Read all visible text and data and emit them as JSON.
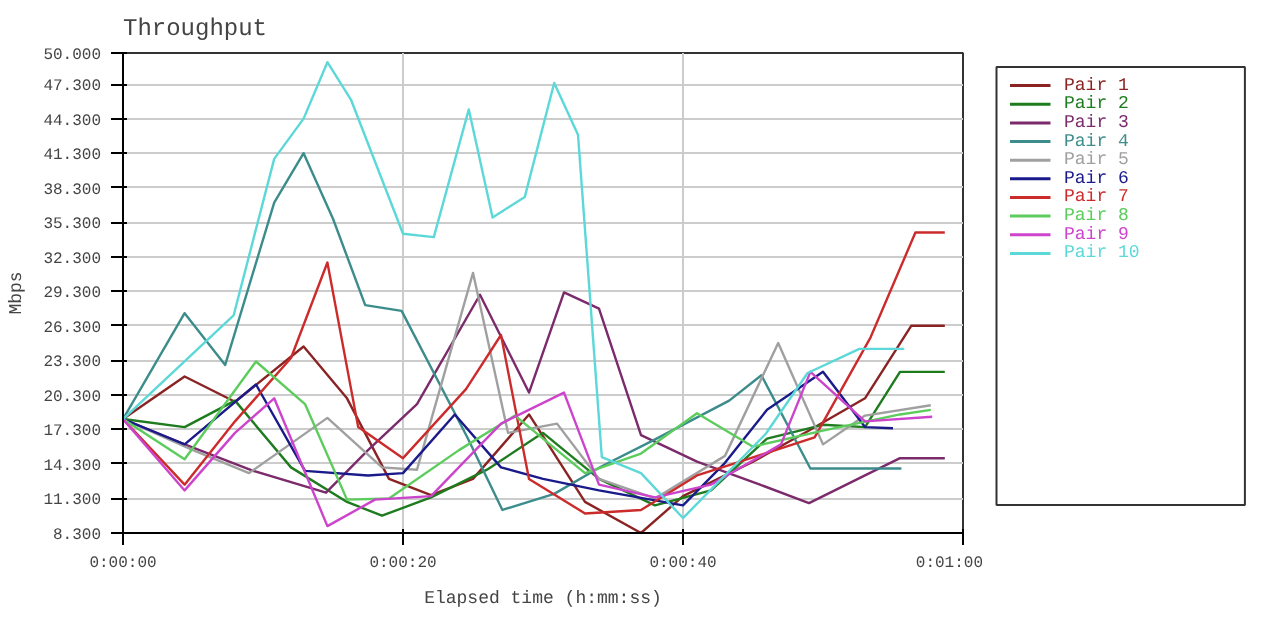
{
  "chart_data": {
    "type": "line",
    "title": "Throughput",
    "xlabel": "Elapsed time (h:mm:ss)",
    "ylabel": "Mbps",
    "xlim": [
      0,
      60
    ],
    "xticks": [
      {
        "value": 0,
        "label": "0:00:00"
      },
      {
        "value": 20,
        "label": "0:00:20"
      },
      {
        "value": 40,
        "label": "0:00:40"
      },
      {
        "value": 60,
        "label": "0:01:00"
      }
    ],
    "ylim": [
      8.3,
      50
    ],
    "yticks": [
      {
        "value": 8.3,
        "label": "8.300"
      },
      {
        "value": 11.3,
        "label": "11.300"
      },
      {
        "value": 14.3,
        "label": "14.300"
      },
      {
        "value": 17.3,
        "label": "17.300"
      },
      {
        "value": 20.3,
        "label": "20.300"
      },
      {
        "value": 23.3,
        "label": "23.300"
      },
      {
        "value": 26.3,
        "label": "26.300"
      },
      {
        "value": 29.3,
        "label": "29.300"
      },
      {
        "value": 32.3,
        "label": "32.300"
      },
      {
        "value": 35.3,
        "label": "35.300"
      },
      {
        "value": 38.3,
        "label": "38.300"
      },
      {
        "value": 41.3,
        "label": "41.300"
      },
      {
        "value": 44.3,
        "label": "44.300"
      },
      {
        "value": 47.3,
        "label": "47.300"
      },
      {
        "value": 50,
        "label": "50.000"
      }
    ],
    "grid": true,
    "legend": "right",
    "marker": "none",
    "line_style": "solid",
    "series": [
      {
        "name": "Pair 1",
        "color": "#8b2323",
        "x": [
          0,
          4.4,
          8,
          12.9,
          16,
          19,
          22,
          25,
          29,
          33,
          37,
          40,
          45,
          49,
          53,
          56.3,
          58.7
        ],
        "values": [
          18.2,
          21.9,
          19.7,
          24.5,
          20,
          13,
          11.6,
          13,
          18.6,
          11,
          8.3,
          11.5,
          14.5,
          17.2,
          20,
          26.3,
          26.3
        ]
      },
      {
        "name": "Pair 2",
        "color": "#1e7b1e",
        "x": [
          0,
          4.4,
          8,
          12,
          16,
          18.5,
          22,
          26,
          30,
          34,
          38,
          42,
          46,
          50,
          53,
          55.5,
          58.7
        ],
        "values": [
          18.2,
          17.5,
          19.8,
          14,
          11,
          9.8,
          11.4,
          13.8,
          17,
          13,
          10.7,
          12,
          16.5,
          17.7,
          17.5,
          22.3,
          22.3
        ]
      },
      {
        "name": "Pair 3",
        "color": "#7b2a6b",
        "x": [
          0,
          4.4,
          9.3,
          14.5,
          17.5,
          21,
          25.5,
          29,
          31.5,
          34,
          37,
          41,
          45.5,
          49,
          53,
          55.5,
          58.7
        ],
        "values": [
          18.2,
          16,
          13.7,
          11.8,
          15.5,
          19.5,
          29,
          20.5,
          29.2,
          27.8,
          16.8,
          14.5,
          12.5,
          10.9,
          13.3,
          14.8,
          14.8
        ]
      },
      {
        "name": "Pair 4",
        "color": "#3c8c8c",
        "x": [
          0,
          4.4,
          7.3,
          10.8,
          12.9,
          15,
          17.3,
          19.9,
          24.6,
          27.1,
          30.8,
          34.2,
          37.8,
          43.3,
          45.6,
          49.1,
          55.6
        ],
        "values": [
          18.2,
          27.4,
          22.9,
          37,
          41.3,
          35.6,
          28.1,
          27.6,
          16.6,
          10.3,
          11.7,
          14.1,
          16.3,
          19.8,
          22,
          13.9,
          13.9
        ]
      },
      {
        "name": "Pair 5",
        "color": "#a0a0a0",
        "x": [
          0,
          5,
          9,
          14.6,
          18.5,
          21,
          25,
          27.5,
          31,
          34,
          38,
          43,
          46.8,
          50,
          53,
          57.7
        ],
        "values": [
          18.2,
          15.5,
          13.5,
          18.3,
          14,
          13.8,
          30.9,
          17,
          17.8,
          13,
          11.3,
          15,
          24.8,
          16,
          18.5,
          19.4
        ]
      },
      {
        "name": "Pair 6",
        "color": "#1a1a8b",
        "x": [
          0,
          4.4,
          9.5,
          13,
          17.5,
          20,
          23.7,
          27,
          30,
          34,
          40,
          43,
          46,
          50,
          53,
          55
        ],
        "values": [
          18.2,
          16,
          21.2,
          13.7,
          13.3,
          13.5,
          18.6,
          14,
          13,
          12,
          10.7,
          14.4,
          19,
          22.3,
          17.5,
          17.4
        ]
      },
      {
        "name": "Pair 7",
        "color": "#cc2b2b",
        "x": [
          0,
          4.4,
          8,
          12,
          14.6,
          16.8,
          20,
          24.5,
          27,
          29,
          33,
          37,
          41,
          43.8,
          49.4,
          53.4,
          56.6,
          58.7
        ],
        "values": [
          18.2,
          12.5,
          18,
          23.5,
          31.8,
          17.5,
          14.8,
          20.8,
          25.5,
          13,
          10,
          10.3,
          13.3,
          14.4,
          16.6,
          25.3,
          34.4,
          34.4
        ]
      },
      {
        "name": "Pair 8",
        "color": "#5ccc5c",
        "x": [
          0,
          4.4,
          9.5,
          13,
          16,
          19,
          24,
          28,
          33,
          37,
          41,
          45,
          50,
          55.5,
          57.7
        ],
        "values": [
          18.2,
          14.7,
          23.2,
          19.5,
          11.2,
          11.3,
          15.5,
          18.5,
          13.5,
          15.2,
          18.7,
          15.8,
          17.2,
          18.6,
          19
        ]
      },
      {
        "name": "Pair 9",
        "color": "#cc44cc",
        "x": [
          0,
          4.4,
          8,
          10.8,
          14.6,
          18,
          22,
          27,
          31.5,
          34,
          38,
          42,
          47,
          49.1,
          53,
          57.8
        ],
        "values": [
          18.2,
          12,
          17,
          20,
          8.9,
          11.2,
          11.5,
          17.8,
          20.5,
          12.5,
          11.4,
          12.5,
          16,
          22.3,
          18,
          18.4
        ]
      },
      {
        "name": "Pair 10",
        "color": "#5cd8d8",
        "x": [
          0,
          7.9,
          10.8,
          12.9,
          14.6,
          16.3,
          20,
          22.2,
          24.7,
          26.4,
          28.7,
          30.8,
          32.5,
          34.2,
          37,
          40,
          45.9,
          48.9,
          52.6,
          55.8
        ],
        "values": [
          18.2,
          27.2,
          40.8,
          44.3,
          49.2,
          45.9,
          34.3,
          34,
          45.1,
          35.7,
          37.5,
          47.4,
          42.9,
          14.9,
          13.5,
          9.6,
          16.9,
          22.2,
          24.3,
          24.3
        ]
      }
    ]
  }
}
